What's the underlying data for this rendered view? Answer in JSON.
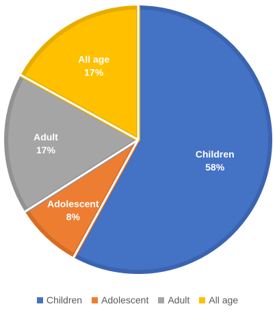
{
  "chart_data": {
    "type": "pie",
    "title": "",
    "categories": [
      "Children",
      "Adolescent",
      "Adult",
      "All age"
    ],
    "values": [
      58,
      8,
      17,
      17
    ],
    "unit": "%",
    "colors": [
      "#4472C4",
      "#ED7D31",
      "#A5A5A5",
      "#FFC000"
    ],
    "edge_colors": [
      "#3A64B0",
      "#D66D25",
      "#929292",
      "#E6AD00"
    ],
    "data_labels": [
      {
        "name": "Children",
        "value": "58%"
      },
      {
        "name": "Adolescent",
        "value": "8%"
      },
      {
        "name": "Adult",
        "value": "17%"
      },
      {
        "name": "All age",
        "value": "17%"
      }
    ],
    "legend_position": "bottom",
    "start_angle_deg": 0,
    "direction": "clockwise"
  }
}
